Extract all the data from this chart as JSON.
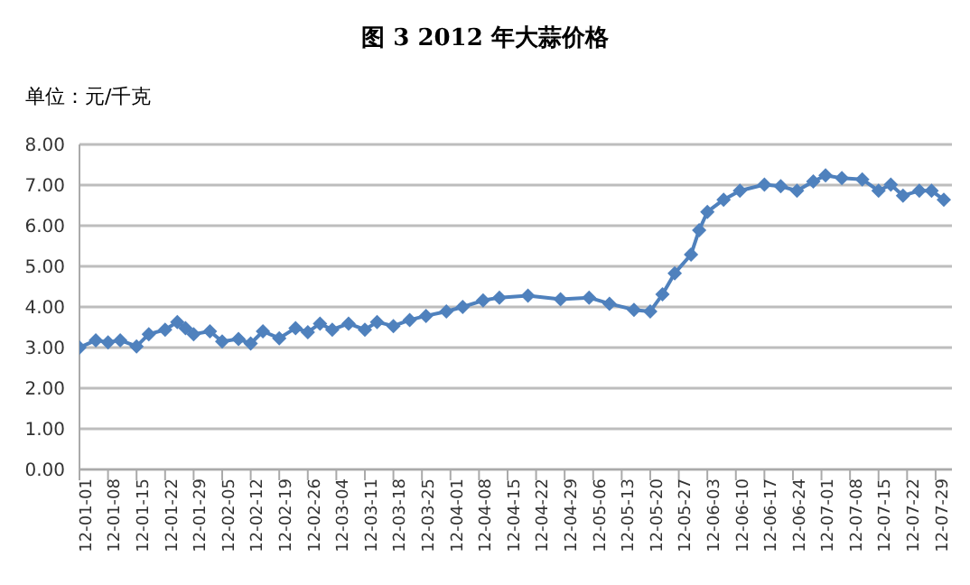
{
  "chart_data": {
    "type": "line",
    "title": "图 3 2012 年大蒜价格",
    "ylabel": "单位：元/千克",
    "x": [
      "2012-01-01",
      "2012-01-05",
      "2012-01-08",
      "2012-01-11",
      "2012-01-15",
      "2012-01-18",
      "2012-01-22",
      "2012-01-25",
      "2012-01-27",
      "2012-01-29",
      "2012-02-02",
      "2012-02-05",
      "2012-02-09",
      "2012-02-12",
      "2012-02-15",
      "2012-02-19",
      "2012-02-23",
      "2012-02-26",
      "2012-02-29",
      "2012-03-03",
      "2012-03-07",
      "2012-03-11",
      "2012-03-14",
      "2012-03-18",
      "2012-03-22",
      "2012-03-26",
      "2012-03-31",
      "2012-04-04",
      "2012-04-09",
      "2012-04-13",
      "2012-04-20",
      "2012-04-28",
      "2012-05-05",
      "2012-05-10",
      "2012-05-16",
      "2012-05-20",
      "2012-05-23",
      "2012-05-26",
      "2012-05-30",
      "2012-06-01",
      "2012-06-03",
      "2012-06-07",
      "2012-06-11",
      "2012-06-17",
      "2012-06-21",
      "2012-06-25",
      "2012-06-29",
      "2012-07-02",
      "2012-07-06",
      "2012-07-11",
      "2012-07-15",
      "2012-07-18",
      "2012-07-21",
      "2012-07-25",
      "2012-07-28",
      "2012-07-31"
    ],
    "series": [
      {
        "color": "#4f81bd",
        "values": [
          3.0,
          3.18,
          3.13,
          3.18,
          3.03,
          3.33,
          3.44,
          3.63,
          3.48,
          3.33,
          3.4,
          3.15,
          3.21,
          3.1,
          3.4,
          3.23,
          3.48,
          3.38,
          3.59,
          3.44,
          3.59,
          3.44,
          3.63,
          3.53,
          3.68,
          3.78,
          3.89,
          4.0,
          4.16,
          4.23,
          4.28,
          4.19,
          4.23,
          4.08,
          3.93,
          3.89,
          4.31,
          4.83,
          5.29,
          5.89,
          6.34,
          6.64,
          6.86,
          7.01,
          6.97,
          6.86,
          7.09,
          7.24,
          7.17,
          7.14,
          6.86,
          7.01,
          6.74,
          6.86,
          6.86,
          6.64
        ]
      }
    ],
    "xlim": [
      "2012-01-01",
      "2012-08-02"
    ],
    "xticks": [
      {
        "value": "2012-01-01",
        "label": "12-01-01"
      },
      {
        "value": "2012-01-08",
        "label": "12-01-08"
      },
      {
        "value": "2012-01-15",
        "label": "12-01-15"
      },
      {
        "value": "2012-01-22",
        "label": "12-01-22"
      },
      {
        "value": "2012-01-29",
        "label": "12-01-29"
      },
      {
        "value": "2012-02-05",
        "label": "12-02-05"
      },
      {
        "value": "2012-02-12",
        "label": "12-02-12"
      },
      {
        "value": "2012-02-19",
        "label": "12-02-19"
      },
      {
        "value": "2012-02-26",
        "label": "12-02-26"
      },
      {
        "value": "2012-03-04",
        "label": "12-03-04"
      },
      {
        "value": "2012-03-11",
        "label": "12-03-11"
      },
      {
        "value": "2012-03-18",
        "label": "12-03-18"
      },
      {
        "value": "2012-03-25",
        "label": "12-03-25"
      },
      {
        "value": "2012-04-01",
        "label": "12-04-01"
      },
      {
        "value": "2012-04-08",
        "label": "12-04-08"
      },
      {
        "value": "2012-04-15",
        "label": "12-04-15"
      },
      {
        "value": "2012-04-22",
        "label": "12-04-22"
      },
      {
        "value": "2012-04-29",
        "label": "12-04-29"
      },
      {
        "value": "2012-05-06",
        "label": "12-05-06"
      },
      {
        "value": "2012-05-13",
        "label": "12-05-13"
      },
      {
        "value": "2012-05-20",
        "label": "12-05-20"
      },
      {
        "value": "2012-05-27",
        "label": "12-05-27"
      },
      {
        "value": "2012-06-03",
        "label": "12-06-03"
      },
      {
        "value": "2012-06-10",
        "label": "12-06-10"
      },
      {
        "value": "2012-06-17",
        "label": "12-06-17"
      },
      {
        "value": "2012-06-24",
        "label": "12-06-24"
      },
      {
        "value": "2012-07-01",
        "label": "12-07-01"
      },
      {
        "value": "2012-07-08",
        "label": "12-07-08"
      },
      {
        "value": "2012-07-15",
        "label": "12-07-15"
      },
      {
        "value": "2012-07-22",
        "label": "12-07-22"
      },
      {
        "value": "2012-07-29",
        "label": "12-07-29"
      }
    ],
    "ylim": [
      0,
      8
    ],
    "yticks": [
      {
        "value": 0,
        "label": "0.00"
      },
      {
        "value": 1,
        "label": "1.00"
      },
      {
        "value": 2,
        "label": "2.00"
      },
      {
        "value": 3,
        "label": "3.00"
      },
      {
        "value": 4,
        "label": "4.00"
      },
      {
        "value": 5,
        "label": "5.00"
      },
      {
        "value": 6,
        "label": "6.00"
      },
      {
        "value": 7,
        "label": "7.00"
      },
      {
        "value": 8,
        "label": "8.00"
      }
    ],
    "grid": "y",
    "legend": false,
    "marker": "diamond",
    "line_style": "solid"
  }
}
